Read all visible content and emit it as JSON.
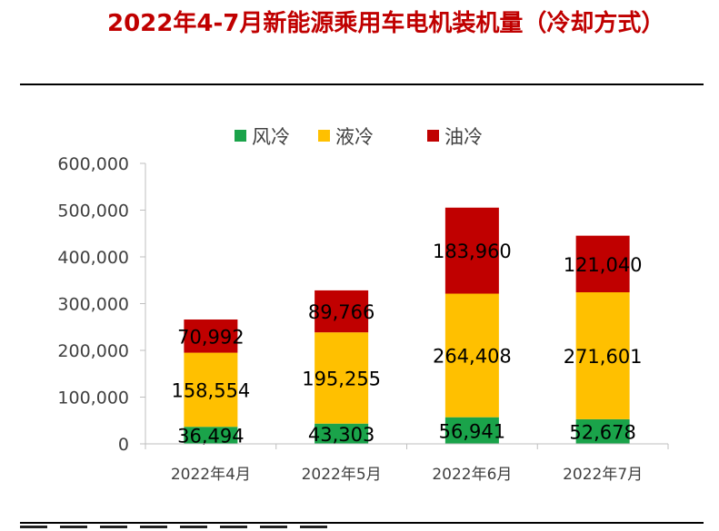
{
  "title": "2022年4-7月新能源乘用车电机装机量（冷却方式）",
  "chart_data": {
    "type": "bar",
    "stacked": true,
    "categories": [
      "2022年4月",
      "2022年5月",
      "2022年6月",
      "2022年7月"
    ],
    "series": [
      {
        "name": "风冷",
        "color": "#1aa34a",
        "values": [
          36494,
          43303,
          56941,
          52678
        ],
        "labels": [
          "36,494",
          "43,303",
          "56,941",
          "52,678"
        ]
      },
      {
        "name": "液冷",
        "color": "#ffc000",
        "values": [
          158554,
          195255,
          264408,
          271601
        ],
        "labels": [
          "158,554",
          "195,255",
          "264,408",
          "271,601"
        ]
      },
      {
        "name": "油冷",
        "color": "#c00000",
        "values": [
          70992,
          89766,
          183960,
          121040
        ],
        "labels": [
          "70,992",
          "89,766",
          "183,960",
          "121,040"
        ]
      }
    ],
    "yticks": [
      "0",
      "100,000",
      "200,000",
      "300,000",
      "400,000",
      "500,000",
      "600,000"
    ],
    "ylim": [
      0,
      600000
    ],
    "legend_position": "top",
    "grid": false
  }
}
